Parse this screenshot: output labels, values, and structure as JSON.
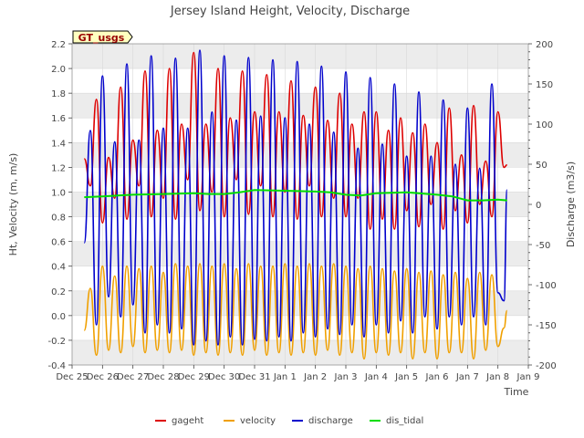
{
  "chart_data": {
    "type": "line",
    "title": "Jersey Island Height, Velocity, Discharge",
    "xlabel": "Time",
    "ylabel_left": "Ht, Velocity (m, m/s)",
    "ylabel_right": "Discharge (m3/s)",
    "badge": "GT_usgs",
    "x_tick_labels": [
      "Dec 25",
      "Dec 26",
      "Dec 27",
      "Dec 28",
      "Dec 29",
      "Dec 30",
      "Dec 31",
      "Jan 1",
      "Jan 2",
      "Jan 3",
      "Jan 4",
      "Jan 5",
      "Jan 6",
      "Jan 7",
      "Jan 8",
      "Jan 9"
    ],
    "x_unit": "days since Dec 25",
    "xlim": [
      0,
      15
    ],
    "ylim_left": [
      -0.4,
      2.2
    ],
    "yticks_left": [
      "-0.4",
      "-0.2",
      "0.0",
      "0.2",
      "0.4",
      "0.6",
      "0.8",
      "1.0",
      "1.2",
      "1.4",
      "1.6",
      "1.8",
      "2.0",
      "2.2"
    ],
    "ylim_right": [
      -200,
      200
    ],
    "yticks_right": [
      "-200",
      "-150",
      "-100",
      "-50",
      "0",
      "50",
      "100",
      "150",
      "200"
    ],
    "legend": [
      {
        "name": "gageht",
        "color": "#dd0000"
      },
      {
        "name": "velocity",
        "color": "#f0a000"
      },
      {
        "name": "discharge",
        "color": "#0000cc"
      },
      {
        "name": "dis_tidal",
        "color": "#00dd00"
      }
    ],
    "x_start": 0.4,
    "x_end": 14.3,
    "series": [
      {
        "name": "gageht",
        "axis": "left",
        "color": "#dd0000",
        "t": [
          0.4,
          0.6,
          0.8,
          1.0,
          1.2,
          1.4,
          1.6,
          1.8,
          2.0,
          2.2,
          2.4,
          2.6,
          2.8,
          3.0,
          3.2,
          3.4,
          3.6,
          3.8,
          4.0,
          4.2,
          4.4,
          4.6,
          4.8,
          5.0,
          5.2,
          5.4,
          5.6,
          5.8,
          6.0,
          6.2,
          6.4,
          6.6,
          6.8,
          7.0,
          7.2,
          7.4,
          7.6,
          7.8,
          8.0,
          8.2,
          8.4,
          8.6,
          8.8,
          9.0,
          9.2,
          9.4,
          9.6,
          9.8,
          10.0,
          10.2,
          10.4,
          10.6,
          10.8,
          11.0,
          11.2,
          11.4,
          11.6,
          11.8,
          12.0,
          12.2,
          12.4,
          12.6,
          12.8,
          13.0,
          13.2,
          13.4,
          13.6,
          13.8,
          14.0,
          14.2,
          14.3
        ],
        "values": [
          1.27,
          1.05,
          1.75,
          0.75,
          1.28,
          0.95,
          1.85,
          0.78,
          1.42,
          1.05,
          1.98,
          0.8,
          1.5,
          0.95,
          2.0,
          0.78,
          1.55,
          1.1,
          2.13,
          0.85,
          1.55,
          1.0,
          2.0,
          0.8,
          1.6,
          1.1,
          1.98,
          0.82,
          1.65,
          1.05,
          1.95,
          0.8,
          1.65,
          1.0,
          1.9,
          0.78,
          1.62,
          1.05,
          1.85,
          0.8,
          1.58,
          0.95,
          1.8,
          0.8,
          1.55,
          0.95,
          1.65,
          0.7,
          1.65,
          0.78,
          1.5,
          0.7,
          1.6,
          0.85,
          1.48,
          0.72,
          1.55,
          0.9,
          1.4,
          0.7,
          1.68,
          0.85,
          1.3,
          0.75,
          1.7,
          0.9,
          1.25,
          0.8,
          1.65,
          1.2,
          1.22
        ]
      },
      {
        "name": "velocity",
        "axis": "left",
        "color": "#f0a000",
        "t": [
          0.4,
          0.6,
          0.8,
          1.0,
          1.2,
          1.4,
          1.6,
          1.8,
          2.0,
          2.2,
          2.4,
          2.6,
          2.8,
          3.0,
          3.2,
          3.4,
          3.6,
          3.8,
          4.0,
          4.2,
          4.4,
          4.6,
          4.8,
          5.0,
          5.2,
          5.4,
          5.6,
          5.8,
          6.0,
          6.2,
          6.4,
          6.6,
          6.8,
          7.0,
          7.2,
          7.4,
          7.6,
          7.8,
          8.0,
          8.2,
          8.4,
          8.6,
          8.8,
          9.0,
          9.2,
          9.4,
          9.6,
          9.8,
          10.0,
          10.2,
          10.4,
          10.6,
          10.8,
          11.0,
          11.2,
          11.4,
          11.6,
          11.8,
          12.0,
          12.2,
          12.4,
          12.6,
          12.8,
          13.0,
          13.2,
          13.4,
          13.6,
          13.8,
          14.0,
          14.2,
          14.3
        ],
        "values": [
          -0.12,
          0.22,
          -0.32,
          0.4,
          -0.28,
          0.32,
          -0.3,
          0.4,
          -0.25,
          0.38,
          -0.3,
          0.4,
          -0.28,
          0.35,
          -0.3,
          0.42,
          -0.28,
          0.4,
          -0.32,
          0.42,
          -0.3,
          0.4,
          -0.32,
          0.42,
          -0.3,
          0.38,
          -0.32,
          0.42,
          -0.28,
          0.4,
          -0.32,
          0.4,
          -0.3,
          0.42,
          -0.32,
          0.4,
          -0.3,
          0.42,
          -0.32,
          0.4,
          -0.28,
          0.42,
          -0.32,
          0.4,
          -0.3,
          0.38,
          -0.35,
          0.4,
          -0.3,
          0.38,
          -0.32,
          0.36,
          -0.3,
          0.38,
          -0.35,
          0.35,
          -0.3,
          0.36,
          -0.35,
          0.33,
          -0.3,
          0.35,
          -0.3,
          0.3,
          -0.35,
          0.35,
          -0.28,
          0.33,
          -0.25,
          -0.1,
          0.04
        ]
      },
      {
        "name": "discharge",
        "axis": "right",
        "color": "#0000cc",
        "t": [
          0.4,
          0.6,
          0.8,
          1.0,
          1.2,
          1.4,
          1.6,
          1.8,
          2.0,
          2.2,
          2.4,
          2.6,
          2.8,
          3.0,
          3.2,
          3.4,
          3.6,
          3.8,
          4.0,
          4.2,
          4.4,
          4.6,
          4.8,
          5.0,
          5.2,
          5.4,
          5.6,
          5.8,
          6.0,
          6.2,
          6.4,
          6.6,
          6.8,
          7.0,
          7.2,
          7.4,
          7.6,
          7.8,
          8.0,
          8.2,
          8.4,
          8.6,
          8.8,
          9.0,
          9.2,
          9.4,
          9.6,
          9.8,
          10.0,
          10.2,
          10.4,
          10.6,
          10.8,
          11.0,
          11.2,
          11.4,
          11.6,
          11.8,
          12.0,
          12.2,
          12.4,
          12.6,
          12.8,
          13.0,
          13.2,
          13.4,
          13.6,
          13.8,
          14.0,
          14.2,
          14.3
        ],
        "values": [
          -48,
          92,
          -150,
          160,
          -115,
          78,
          -140,
          175,
          -125,
          80,
          -160,
          185,
          -150,
          95,
          -160,
          182,
          -155,
          95,
          -175,
          192,
          -170,
          115,
          -175,
          185,
          -165,
          105,
          -175,
          183,
          -168,
          110,
          -170,
          180,
          -165,
          108,
          -170,
          178,
          -160,
          100,
          -165,
          172,
          -155,
          90,
          -162,
          165,
          -150,
          70,
          -165,
          158,
          -150,
          75,
          -160,
          150,
          -145,
          60,
          -160,
          140,
          -140,
          60,
          -155,
          130,
          -140,
          50,
          -150,
          120,
          -140,
          45,
          -150,
          150,
          -110,
          -120,
          18
        ]
      },
      {
        "name": "dis_tidal",
        "axis": "right",
        "color": "#00dd00",
        "t": [
          0.4,
          1.0,
          2.0,
          3.0,
          4.0,
          4.5,
          5.0,
          5.5,
          6.0,
          7.0,
          8.0,
          8.5,
          9.0,
          9.5,
          10.0,
          11.0,
          12.0,
          12.5,
          13.0,
          13.5,
          14.0,
          14.3
        ],
        "values": [
          9,
          10,
          12,
          13,
          14,
          13,
          13,
          15,
          18,
          17,
          16,
          15,
          12,
          11,
          14,
          15,
          12,
          10,
          5,
          5,
          6,
          5
        ]
      }
    ]
  }
}
